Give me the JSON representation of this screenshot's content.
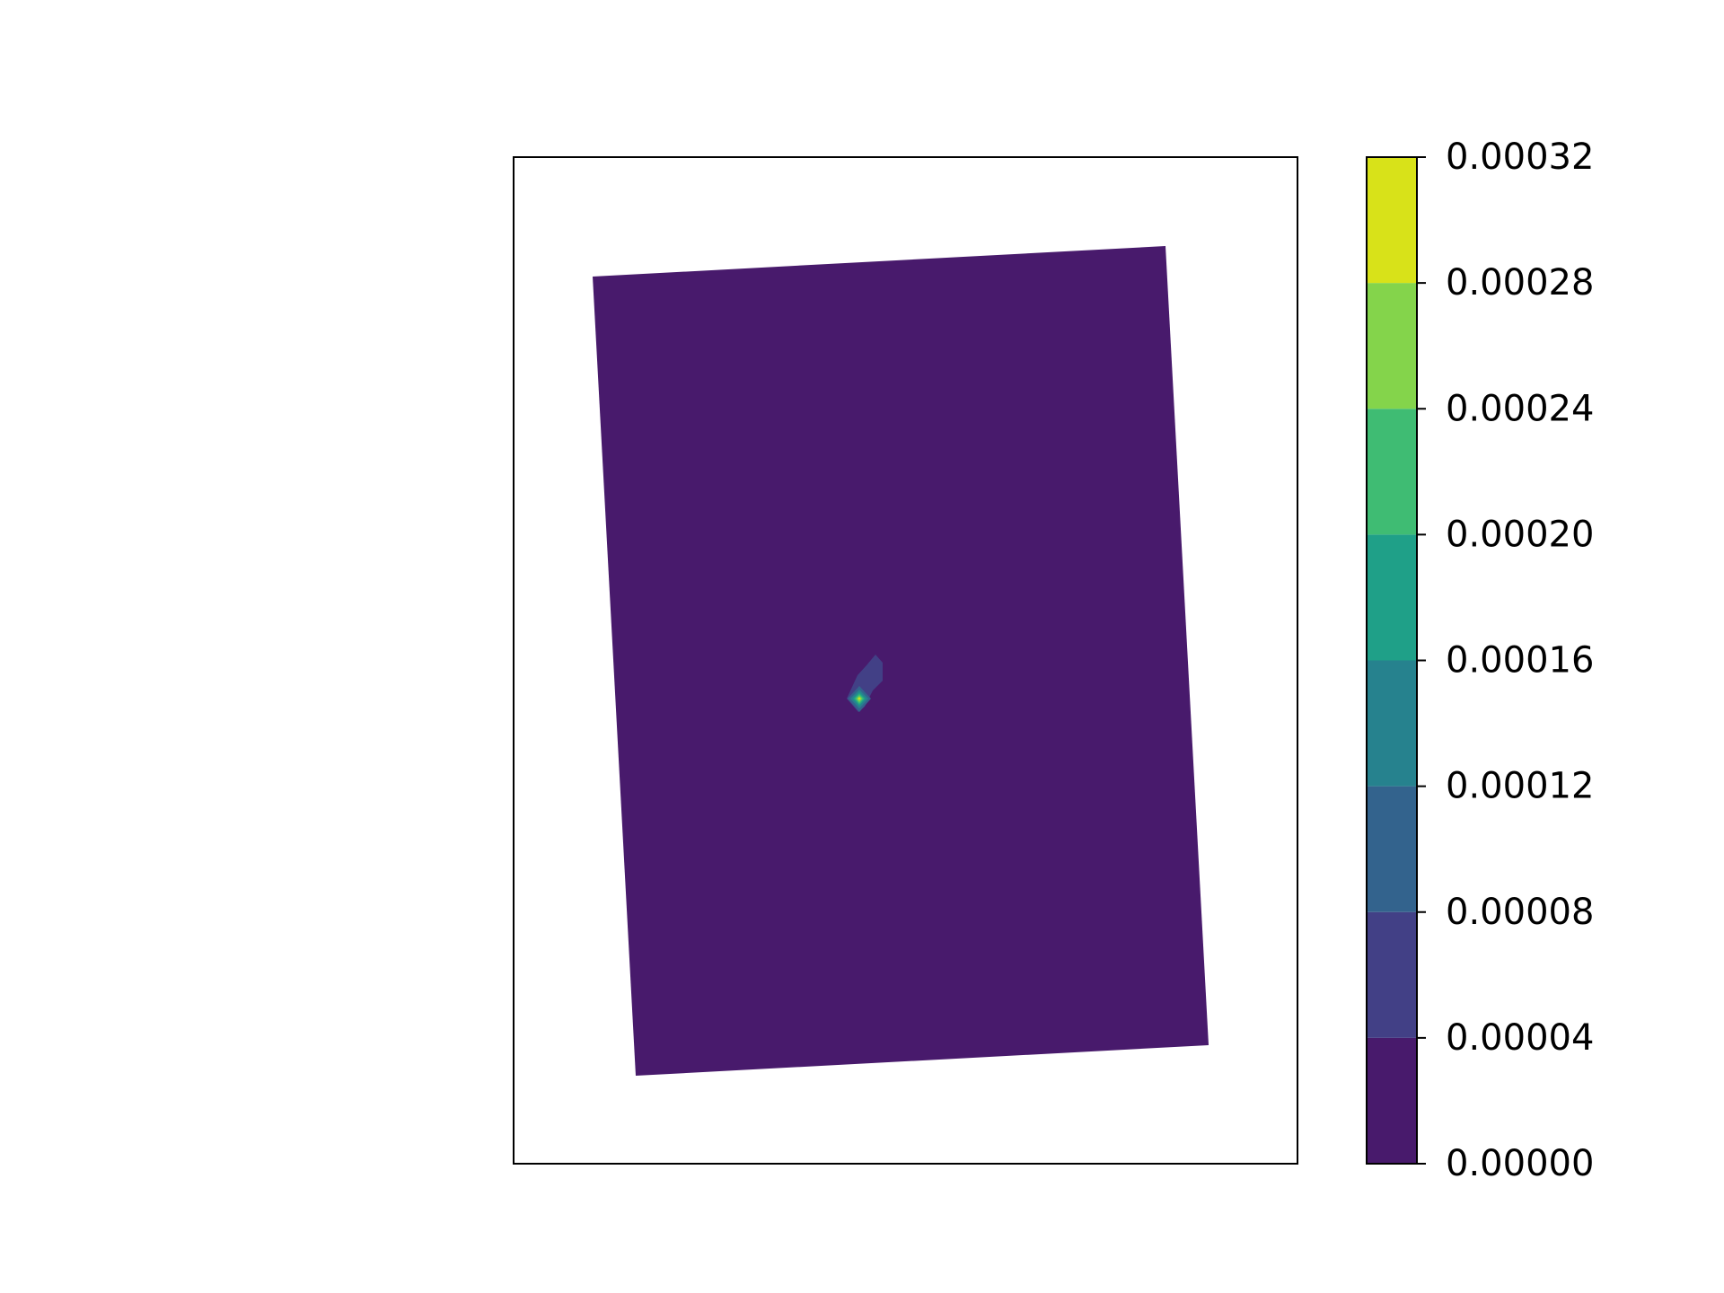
{
  "chart_data": {
    "type": "heatmap",
    "subtype": "filled contour on rotated quadrilateral domain",
    "colormap": "viridis",
    "axes_ticks_visible": false,
    "grid": false,
    "field": {
      "background_level": [
        0.0,
        4e-05
      ],
      "hotspot_levels": [
        [
          4e-05,
          8e-05
        ],
        [
          8e-05,
          0.00012
        ],
        [
          0.00012,
          0.00016
        ],
        [
          0.00016,
          0.0002
        ],
        [
          0.0002,
          0.00024
        ],
        [
          0.00024,
          0.00028
        ],
        [
          0.00028,
          0.00032
        ]
      ],
      "peak_value_approx": 0.0003
    },
    "colorbar": {
      "orientation": "vertical",
      "placement": "right",
      "levels": [
        0.0,
        4e-05,
        8e-05,
        0.00012,
        0.00016,
        0.0002,
        0.00024,
        0.00028,
        0.00032
      ],
      "tick_labels": [
        "0.00000",
        "0.00004",
        "0.00008",
        "0.00012",
        "0.00016",
        "0.00020",
        "0.00024",
        "0.00028",
        "0.00032"
      ],
      "colors": [
        "#481a6c",
        "#424086",
        "#33638d",
        "#26828e",
        "#1fa088",
        "#3fbc73",
        "#84d44b",
        "#d8e219"
      ]
    }
  }
}
